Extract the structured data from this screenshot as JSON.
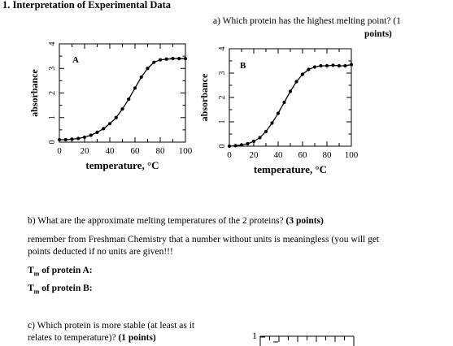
{
  "heading": "1. Interpretation of Experimental Data",
  "question_a": {
    "line1": "a) Which protein has the highest melting point? (1",
    "line2": "points)"
  },
  "question_b": {
    "text": "b) What are the approximate melting temperatures of the 2 proteins?",
    "points": "(3 points)"
  },
  "reminder": {
    "line1": "remember from Freshman Chemistry that a number without units is meaningless (you will get",
    "line2": "points deducted if no units are given!!!"
  },
  "tm_a": {
    "prefix": "T",
    "sub": "m",
    "suffix": " of protein A:"
  },
  "tm_b": {
    "prefix": "T",
    "sub": "m",
    "suffix": " of protein B:"
  },
  "question_c": {
    "line1": "c) Which protein is more stable (at least as it",
    "line2_text": "relates to temperature)?",
    "line2_points": "(1 points)"
  },
  "chart_data": [
    {
      "type": "line",
      "panel_label": "A",
      "xlabel": "temperature, °C",
      "ylabel": "absorbance",
      "xlim": [
        0,
        100
      ],
      "ylim": [
        0,
        4
      ],
      "xticks": [
        "0",
        "20",
        "40",
        "60",
        "80",
        "100"
      ],
      "yticks": [
        "0",
        "1",
        "2",
        "3",
        "4"
      ],
      "x": [
        0,
        5,
        10,
        15,
        20,
        25,
        30,
        35,
        40,
        45,
        50,
        55,
        60,
        65,
        70,
        75,
        80,
        85,
        90,
        95,
        100
      ],
      "y": [
        0.1,
        0.1,
        0.12,
        0.15,
        0.2,
        0.28,
        0.4,
        0.55,
        0.75,
        1.0,
        1.35,
        1.75,
        2.2,
        2.65,
        3.0,
        3.25,
        3.35,
        3.38,
        3.4,
        3.4,
        3.4
      ]
    },
    {
      "type": "line",
      "panel_label": "B",
      "xlabel": "temperature, °C",
      "ylabel": "absorbance",
      "xlim": [
        0,
        100
      ],
      "ylim": [
        0,
        4
      ],
      "xticks": [
        "0",
        "20",
        "40",
        "60",
        "80",
        "100"
      ],
      "yticks": [
        "0",
        "1",
        "2",
        "3",
        "4"
      ],
      "x": [
        0,
        5,
        10,
        15,
        20,
        25,
        30,
        35,
        40,
        45,
        50,
        55,
        60,
        65,
        70,
        75,
        80,
        85,
        90,
        95,
        100
      ],
      "y": [
        0.0,
        0.02,
        0.05,
        0.1,
        0.2,
        0.35,
        0.6,
        0.95,
        1.35,
        1.8,
        2.25,
        2.65,
        2.95,
        3.15,
        3.25,
        3.3,
        3.3,
        3.32,
        3.3,
        3.3,
        3.35
      ]
    }
  ],
  "partial_chart": {
    "ytick_label": "1"
  }
}
